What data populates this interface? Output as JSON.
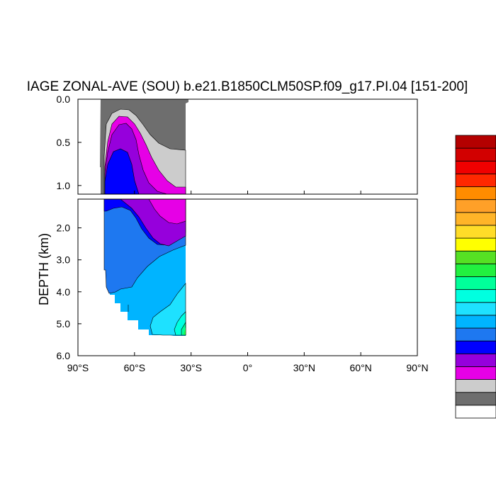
{
  "chart_data": {
    "type": "contour",
    "title": "IAGE ZONAL-AVE (SOU) b.e21.B1850CLM50SP.f09_g17.PI.04 [151-200]",
    "xlabel": "",
    "ylabel": "DEPTH (km)",
    "xlim": [
      -90,
      90
    ],
    "x_ticks": [
      {
        "value": -90,
        "label": "90°S"
      },
      {
        "value": -60,
        "label": "60°S"
      },
      {
        "value": -30,
        "label": "30°S"
      },
      {
        "value": 0,
        "label": "0°"
      },
      {
        "value": 30,
        "label": "30°N"
      },
      {
        "value": 60,
        "label": "60°N"
      },
      {
        "value": 90,
        "label": "90°N"
      }
    ],
    "upper_panel": {
      "ylim": [
        0.0,
        1.1
      ],
      "y_ticks": [
        {
          "value": 0.0,
          "label": "0.0"
        },
        {
          "value": 0.5,
          "label": "0.5"
        },
        {
          "value": 1.0,
          "label": "1.0"
        }
      ]
    },
    "lower_panel": {
      "ylim": [
        1.1,
        6.0
      ],
      "y_ticks": [
        {
          "value": 2.0,
          "label": "2.0"
        },
        {
          "value": 3.0,
          "label": "3.0"
        },
        {
          "value": 4.0,
          "label": "4.0"
        },
        {
          "value": 5.0,
          "label": "5.0"
        },
        {
          "value": 6.0,
          "label": "6.0"
        }
      ]
    },
    "data_lat_range": [
      -78,
      -33
    ],
    "colorbar": {
      "orientation": "vertical",
      "placement": "right",
      "labels_visible": false,
      "colors": [
        "#ffffff",
        "#6e6e6e",
        "#cccccc",
        "#e600e6",
        "#9600dc",
        "#0000ff",
        "#1e78f0",
        "#00b4ff",
        "#1ee1ff",
        "#00ffe0",
        "#00ff9a",
        "#22f040",
        "#56e024",
        "#ffff00",
        "#ffdc28",
        "#ffb428",
        "#ffa028",
        "#ff8c00",
        "#ff2800",
        "#f00000",
        "#d20000",
        "#b40000"
      ]
    },
    "colors": {
      "level_land": "#ffffff",
      "level_1": "#6e6e6e",
      "level_2": "#cccccc",
      "level_3": "#e600e6",
      "level_4": "#9600dc",
      "level_5": "#0000ff",
      "level_6": "#1e78f0",
      "level_7": "#00b4ff",
      "level_8": "#1ee1ff",
      "level_9": "#00ffe0",
      "level_10": "#00ff9a",
      "level_11": "#22f040"
    }
  }
}
